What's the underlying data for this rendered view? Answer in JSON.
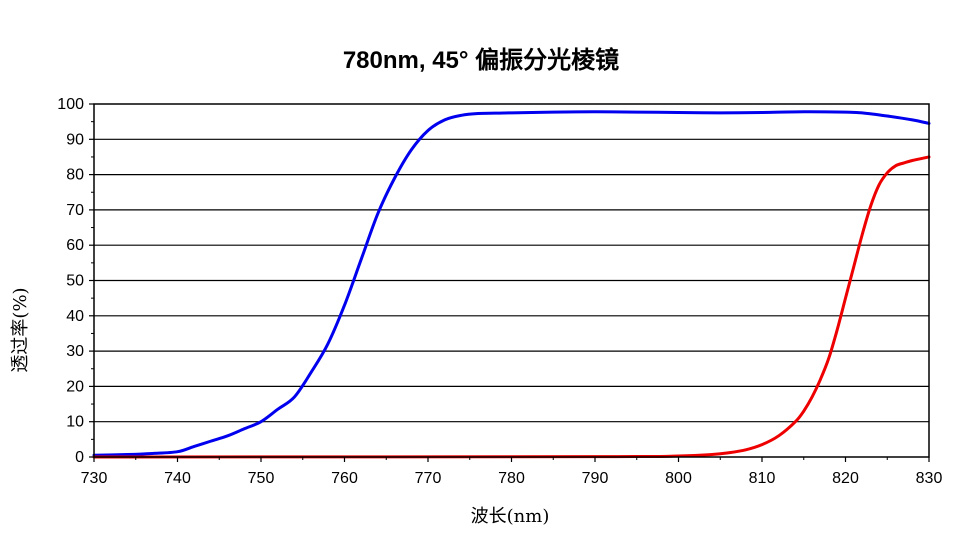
{
  "chart_data": {
    "type": "line",
    "title": "780nm, 45° 偏振分光棱镜",
    "xlabel": "波长(nm)",
    "ylabel": "透过率(%)",
    "xlim": [
      730,
      830
    ],
    "ylim": [
      0,
      100
    ],
    "x_ticks": [
      730,
      740,
      750,
      760,
      770,
      780,
      790,
      800,
      810,
      820,
      830
    ],
    "y_ticks": [
      0,
      10,
      20,
      30,
      40,
      50,
      60,
      70,
      80,
      90,
      100
    ],
    "grid": "horizontal",
    "series": [
      {
        "color": "#0000ee",
        "x": [
          730,
          734,
          737,
          740,
          742,
          744,
          746,
          748,
          750,
          752,
          754,
          756,
          758,
          760,
          762,
          764,
          766,
          768,
          770,
          772,
          774,
          776,
          778,
          780,
          785,
          790,
          795,
          800,
          805,
          810,
          815,
          820,
          822,
          825,
          828,
          830
        ],
        "y": [
          0.5,
          0.7,
          1.0,
          1.5,
          3.0,
          4.5,
          6.0,
          8.0,
          10.0,
          13.5,
          17.0,
          24.0,
          32.0,
          43.0,
          56.0,
          69.0,
          79.0,
          87.0,
          92.5,
          95.5,
          96.8,
          97.3,
          97.4,
          97.5,
          97.7,
          97.8,
          97.7,
          97.6,
          97.5,
          97.6,
          97.8,
          97.7,
          97.5,
          96.6,
          95.5,
          94.5
        ]
      },
      {
        "color": "#ee0000",
        "x": [
          730,
          790,
          800,
          804,
          806,
          808,
          810,
          812,
          814,
          815,
          816,
          817,
          818,
          819,
          820,
          821,
          822,
          823,
          824,
          825,
          826,
          827,
          828,
          830
        ],
        "y": [
          0.0,
          0.1,
          0.3,
          0.7,
          1.2,
          2.0,
          3.5,
          6.0,
          10.0,
          13.0,
          17.0,
          22.0,
          28.0,
          36.0,
          45.0,
          54.0,
          63.0,
          71.0,
          77.0,
          80.5,
          82.5,
          83.3,
          84.0,
          85.0
        ]
      }
    ]
  }
}
